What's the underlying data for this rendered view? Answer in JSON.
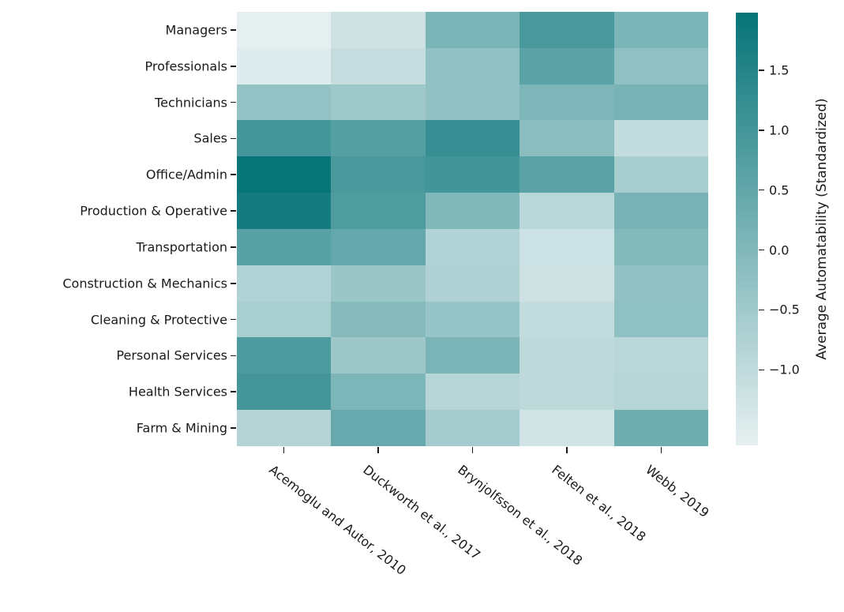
{
  "figure": {
    "background": "#ffffff",
    "text_color": "#1a1a1a"
  },
  "chart_data": {
    "type": "heatmap",
    "title": "",
    "x_categories": [
      "Acemoglu and Autor, 2010",
      "Duckworth et al., 2017",
      "Brynjolfsson et al., 2018",
      "Felten et al., 2018",
      "Webb, 2019"
    ],
    "y_categories": [
      "Managers",
      "Professionals",
      "Technicians",
      "Sales",
      "Office/Admin",
      "Production & Operative",
      "Transportation",
      "Construction & Mechanics",
      "Cleaning & Protective",
      "Personal Services",
      "Health Services",
      "Farm & Mining"
    ],
    "values": [
      [
        -1.6,
        -1.23,
        0.13,
        0.9,
        0.1
      ],
      [
        -1.5,
        -1.09,
        -0.27,
        0.62,
        -0.24
      ],
      [
        -0.3,
        -0.47,
        -0.27,
        0.05,
        0.16
      ],
      [
        0.98,
        0.73,
        1.18,
        -0.15,
        -1.06
      ],
      [
        1.97,
        0.9,
        1.01,
        0.64,
        -0.6
      ],
      [
        1.75,
        0.81,
        0.0,
        -0.89,
        0.16
      ],
      [
        0.67,
        0.47,
        -0.78,
        -1.2,
        -0.04
      ],
      [
        -0.78,
        -0.41,
        -0.75,
        -1.23,
        -0.27
      ],
      [
        -0.64,
        -0.07,
        -0.35,
        -1.06,
        -0.22
      ],
      [
        0.84,
        -0.44,
        0.12,
        -0.95,
        -0.89
      ],
      [
        0.98,
        0.07,
        -0.83,
        -0.95,
        -0.83
      ],
      [
        -0.81,
        0.43,
        -0.55,
        -1.26,
        0.3
      ]
    ],
    "color_scale": {
      "vmin": -1.63,
      "vmax": 1.98,
      "color_min": "#e7f0f1",
      "color_max": "#067478"
    },
    "colorbar": {
      "label": "Average Automatability (Standardized)",
      "ticks": [
        1.5,
        1.0,
        0.5,
        0.0,
        -0.5,
        -1.0
      ],
      "tick_labels": [
        "1.5",
        "1.0",
        "0.5",
        "0.0",
        "−0.5",
        "−1.0"
      ]
    },
    "x_tick_rotation_deg": 38,
    "grid": false,
    "legend": "none"
  }
}
